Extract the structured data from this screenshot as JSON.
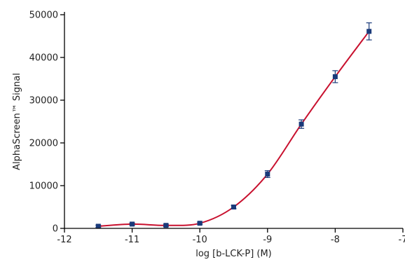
{
  "chart_data": {
    "type": "scatter",
    "title": "",
    "xlabel": "log [b-LCK-P] (M)",
    "ylabel": "AlphaScreen™ Signal",
    "xlim": [
      -12,
      -7
    ],
    "ylim": [
      0,
      50000
    ],
    "x_ticks": [
      -12,
      -11,
      -10,
      -9,
      -8,
      -7
    ],
    "y_ticks": [
      0,
      10000,
      20000,
      30000,
      40000,
      50000
    ],
    "grid": false,
    "legend": "none",
    "series": [
      {
        "x": [
          -11.5,
          -11.0,
          -10.5,
          -10.0,
          -9.5,
          -9.0,
          -8.5,
          -8.0,
          -7.5
        ],
        "y": [
          500,
          1000,
          700,
          1200,
          5000,
          12700,
          24400,
          35500,
          46100
        ],
        "error": [
          250,
          250,
          250,
          250,
          400,
          800,
          1000,
          1400,
          2000
        ],
        "marker_color": "#1a3a7a",
        "line_color": "#c8102e",
        "fit_curve": true
      }
    ]
  }
}
